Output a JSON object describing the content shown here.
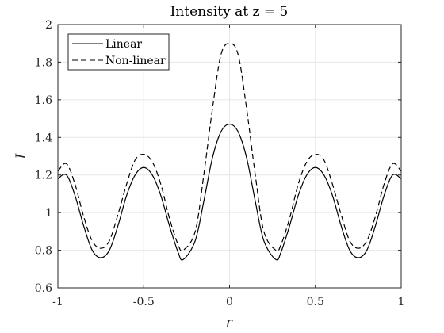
{
  "chart_data": {
    "type": "line",
    "title": "Intensity at z = 5",
    "xlabel": "r",
    "ylabel": "I",
    "xlim": [
      -1,
      1
    ],
    "ylim": [
      0.6,
      2
    ],
    "grid": true,
    "legend_position": "top-left",
    "x_ticks": [
      -1,
      -0.5,
      0,
      0.5,
      1
    ],
    "x_tick_labels": [
      "-1",
      "-0.5",
      "0",
      "0.5",
      "1"
    ],
    "y_ticks": [
      0.6,
      0.8,
      1,
      1.2,
      1.4,
      1.6,
      1.8,
      2
    ],
    "y_tick_labels": [
      "0.6",
      "0.8",
      "1",
      "1.2",
      "1.4",
      "1.6",
      "1.8",
      "2"
    ],
    "x": [
      -1.0,
      -0.95,
      -0.9,
      -0.85,
      -0.8,
      -0.75,
      -0.7,
      -0.65,
      -0.6,
      -0.55,
      -0.5,
      -0.45,
      -0.4,
      -0.35,
      -0.3,
      -0.27,
      -0.2,
      -0.15,
      -0.1,
      -0.05,
      0.0,
      0.05,
      0.1,
      0.15,
      0.2,
      0.27,
      0.3,
      0.35,
      0.4,
      0.45,
      0.5,
      0.55,
      0.6,
      0.65,
      0.7,
      0.75,
      0.8,
      0.85,
      0.9,
      0.95,
      1.0
    ],
    "series": [
      {
        "name": "Linear",
        "line_style": "solid",
        "color": "#000000",
        "values": [
          1.18,
          1.2,
          1.09,
          0.93,
          0.8,
          0.76,
          0.8,
          0.93,
          1.09,
          1.2,
          1.24,
          1.2,
          1.09,
          0.93,
          0.79,
          0.75,
          0.85,
          1.06,
          1.29,
          1.43,
          1.47,
          1.43,
          1.29,
          1.06,
          0.85,
          0.75,
          0.79,
          0.93,
          1.09,
          1.2,
          1.24,
          1.2,
          1.09,
          0.93,
          0.8,
          0.76,
          0.8,
          0.93,
          1.09,
          1.2,
          1.18
        ]
      },
      {
        "name": "Non-linear",
        "line_style": "dashed",
        "color": "#000000",
        "values": [
          1.22,
          1.26,
          1.15,
          0.98,
          0.85,
          0.81,
          0.85,
          0.99,
          1.15,
          1.28,
          1.31,
          1.27,
          1.15,
          0.97,
          0.83,
          0.8,
          0.9,
          1.2,
          1.55,
          1.84,
          1.9,
          1.84,
          1.55,
          1.2,
          0.9,
          0.8,
          0.83,
          0.97,
          1.15,
          1.27,
          1.31,
          1.28,
          1.15,
          0.99,
          0.85,
          0.81,
          0.85,
          0.98,
          1.15,
          1.26,
          1.22
        ]
      }
    ]
  }
}
